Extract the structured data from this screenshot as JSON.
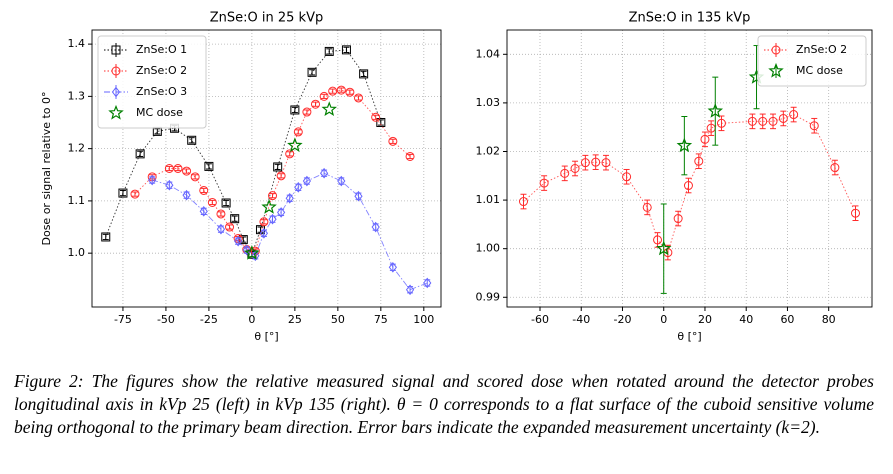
{
  "chart_data": [
    {
      "type": "errorbar",
      "title": "ZnSe:O in 25 kVp",
      "x_label": "θ [°]",
      "y_label": "Dose or signal relative to 0°",
      "xlim": [
        -93,
        110
      ],
      "ylim": [
        0.897,
        1.427
      ],
      "xticks": [
        -75,
        -50,
        -25,
        0,
        25,
        50,
        75,
        100
      ],
      "yticks": [
        {
          "value": 1.0,
          "label": "1.0"
        },
        1.1,
        1.2,
        1.3,
        1.4
      ],
      "grid": true,
      "legend": "upper left",
      "series": [
        {
          "name": "ZnSe:O 1",
          "color": "#000000",
          "marker": "square",
          "linestyle": "dotted",
          "x": [
            -85,
            -75,
            -65,
            -55,
            -45,
            -35,
            -25,
            -15,
            -10,
            -5,
            0,
            5,
            15,
            25,
            35,
            45,
            55,
            65,
            75
          ],
          "values": [
            1.031,
            1.115,
            1.19,
            1.233,
            1.239,
            1.216,
            1.166,
            1.096,
            1.066,
            1.026,
            0.998,
            1.045,
            1.165,
            1.274,
            1.346,
            1.386,
            1.389,
            1.343,
            1.25
          ],
          "errors": [
            0.005,
            0.005,
            0.005,
            0.005,
            0.005,
            0.005,
            0.005,
            0.005,
            0.005,
            0.005,
            0.005,
            0.005,
            0.005,
            0.005,
            0.005,
            0.005,
            0.005,
            0.005,
            0.005
          ]
        },
        {
          "name": "ZnSe:O 2",
          "color": "#ff2a2a",
          "marker": "circle",
          "linestyle": "dotted",
          "x": [
            -68,
            -58,
            -48,
            -43,
            -38,
            -33,
            -28,
            -23,
            -18,
            -13,
            -8,
            -3,
            2,
            7,
            12,
            17,
            22,
            27,
            32,
            37,
            42,
            47,
            52,
            57,
            62,
            72,
            82,
            92
          ],
          "values": [
            1.113,
            1.146,
            1.162,
            1.162,
            1.157,
            1.146,
            1.12,
            1.097,
            1.075,
            1.05,
            1.028,
            1.007,
            1.004,
            1.06,
            1.11,
            1.148,
            1.19,
            1.232,
            1.27,
            1.285,
            1.3,
            1.31,
            1.312,
            1.308,
            1.297,
            1.26,
            1.214,
            1.185
          ],
          "errors": [
            0.004,
            0.004,
            0.004,
            0.004,
            0.004,
            0.004,
            0.004,
            0.004,
            0.004,
            0.004,
            0.004,
            0.004,
            0.004,
            0.004,
            0.004,
            0.004,
            0.004,
            0.004,
            0.004,
            0.004,
            0.004,
            0.004,
            0.004,
            0.004,
            0.004,
            0.004,
            0.004,
            0.004
          ]
        },
        {
          "name": "ZnSe:O 3",
          "color": "#6666ff",
          "marker": "diamond",
          "linestyle": "dashdot",
          "x": [
            -58,
            -48,
            -38,
            -28,
            -18,
            -8,
            -3,
            2,
            7,
            12,
            17,
            22,
            27,
            32,
            42,
            52,
            62,
            72,
            82,
            92,
            102
          ],
          "values": [
            1.14,
            1.13,
            1.111,
            1.08,
            1.046,
            1.023,
            1.006,
            0.995,
            1.038,
            1.065,
            1.078,
            1.105,
            1.126,
            1.138,
            1.153,
            1.138,
            1.109,
            1.05,
            0.973,
            0.93,
            0.943
          ],
          "errors": [
            0.006,
            0.006,
            0.006,
            0.006,
            0.006,
            0.006,
            0.006,
            0.006,
            0.006,
            0.006,
            0.006,
            0.006,
            0.006,
            0.006,
            0.006,
            0.006,
            0.006,
            0.006,
            0.006,
            0.006,
            0.006
          ]
        },
        {
          "name": "MC dose",
          "color": "#008000",
          "marker": "star",
          "linestyle": "none",
          "x": [
            0,
            10,
            25,
            45
          ],
          "values": [
            1.0,
            1.088,
            1.206,
            1.275
          ]
        }
      ]
    },
    {
      "type": "errorbar",
      "title": "ZnSe:O in 135 kVp",
      "x_label": "θ [°]",
      "xlim": [
        -76,
        101
      ],
      "ylim": [
        0.988,
        1.045
      ],
      "xticks": [
        -60,
        -40,
        -20,
        0,
        20,
        40,
        60,
        80
      ],
      "yticks": [
        0.99,
        {
          "value": 1.0,
          "label": "1.00"
        },
        1.01,
        1.02,
        1.03,
        1.04
      ],
      "grid": true,
      "legend": "upper right",
      "series": [
        {
          "name": "ZnSe:O 2",
          "color": "#ff2a2a",
          "marker": "circle",
          "linestyle": "dotted",
          "x": [
            -68,
            -58,
            -48,
            -43,
            -38,
            -33,
            -28,
            -18,
            -8,
            -3,
            2,
            7,
            12,
            17,
            20,
            23,
            28,
            43,
            48,
            53,
            58,
            63,
            73,
            83,
            93
          ],
          "values": [
            1.0097,
            1.0135,
            1.0155,
            1.0165,
            1.0177,
            1.0178,
            1.0177,
            1.0148,
            1.0085,
            1.0018,
            0.9992,
            1.0062,
            1.013,
            1.018,
            1.0225,
            1.0248,
            1.0258,
            1.0262,
            1.0262,
            1.0262,
            1.0268,
            1.0276,
            1.0253,
            1.0167,
            1.0073
          ],
          "errors": [
            0.0015,
            0.0015,
            0.0015,
            0.0015,
            0.0015,
            0.0015,
            0.0015,
            0.0015,
            0.0015,
            0.0015,
            0.0015,
            0.0015,
            0.0015,
            0.0015,
            0.0015,
            0.0015,
            0.0015,
            0.0015,
            0.0015,
            0.0015,
            0.0015,
            0.0015,
            0.0015,
            0.0015,
            0.0015
          ]
        },
        {
          "name": "MC dose",
          "color": "#008000",
          "marker": "star",
          "linestyle": "none",
          "x": [
            0,
            10,
            25,
            45
          ],
          "values": [
            1.0,
            1.0212,
            1.0283,
            1.0353
          ],
          "errors": [
            0.0092,
            0.006,
            0.007,
            0.0065
          ]
        }
      ]
    }
  ],
  "caption": "Figure 2: The figures show the relative measured signal and scored dose when rotated around the detector probes longitudinal axis in kVp 25 (left) in kVp 135 (right). θ = 0 corresponds to a flat surface of the cuboid sensitive volume being orthogonal to the primary beam direction. Error bars indicate the expanded measurement uncertainty (k=2)."
}
